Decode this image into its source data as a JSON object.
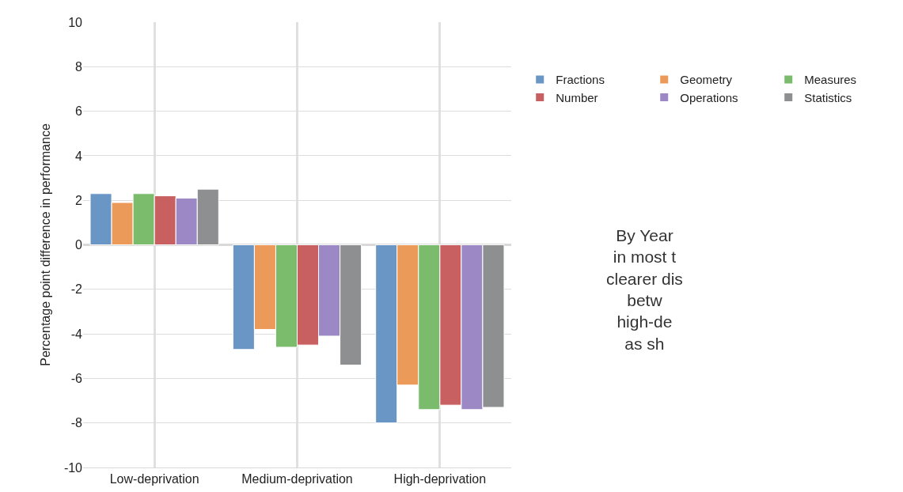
{
  "chart_data": {
    "type": "bar",
    "ylabel": "Percentage point difference in performance",
    "categories": [
      "Low-deprivation",
      "Medium-deprivation",
      "High-deprivation"
    ],
    "series": [
      {
        "name": "Fractions",
        "color": "#6a96c6",
        "values": [
          2.3,
          -4.7,
          -8.0
        ]
      },
      {
        "name": "Geometry",
        "color": "#ec9a5a",
        "values": [
          1.9,
          -3.8,
          -6.3
        ]
      },
      {
        "name": "Measures",
        "color": "#7bbb6c",
        "values": [
          2.3,
          -4.6,
          -7.4
        ]
      },
      {
        "name": "Number",
        "color": "#c86062",
        "values": [
          2.2,
          -4.5,
          -7.2
        ]
      },
      {
        "name": "Operations",
        "color": "#9c88c4",
        "values": [
          2.1,
          -4.1,
          -7.4
        ]
      },
      {
        "name": "Statistics",
        "color": "#8d8f90",
        "values": [
          2.5,
          -5.4,
          -7.3
        ]
      }
    ],
    "ylim": [
      -10,
      10
    ],
    "yticks": [
      -10,
      -8,
      -6,
      -4,
      -2,
      0,
      2,
      4,
      6,
      8,
      10
    ],
    "grid": true,
    "legend": "top right",
    "annotations": [
      "By Year\nin most t\nclearer dis\nbetw\nhigh-de\nas sh"
    ]
  }
}
